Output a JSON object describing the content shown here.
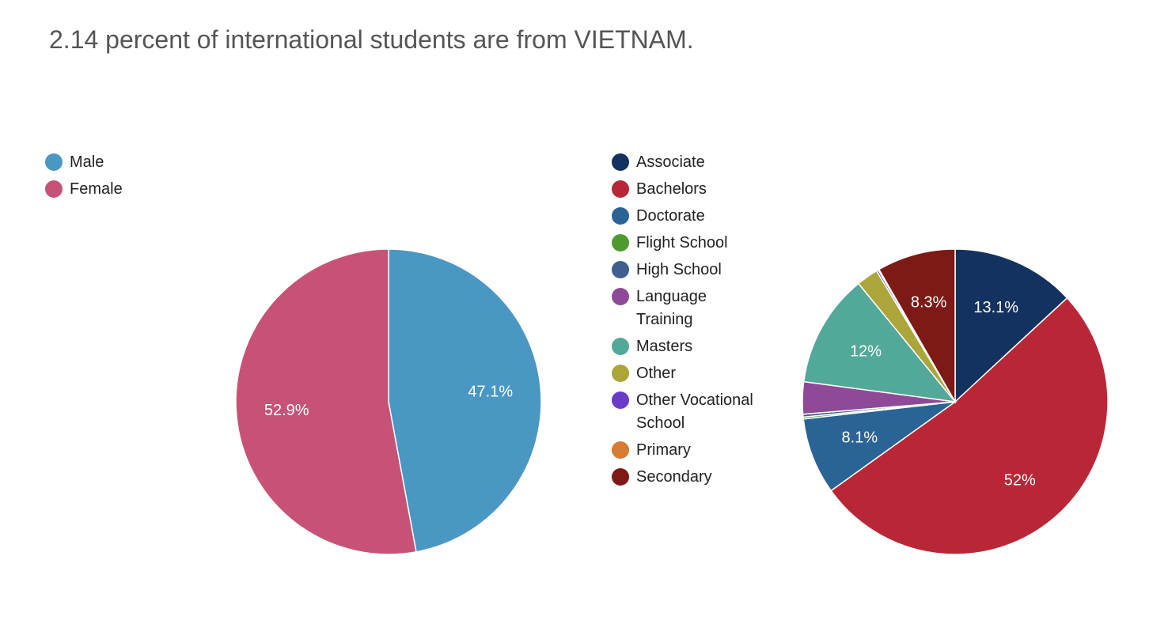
{
  "title": "2.14 percent of international students are from VIETNAM.",
  "chart_data": [
    {
      "type": "pie",
      "categories": [
        "Male",
        "Female"
      ],
      "values": [
        47.1,
        52.9
      ],
      "value_labels": [
        "47.1%",
        "52.9%"
      ],
      "colors": [
        "#4a97c4",
        "#c85276"
      ]
    },
    {
      "type": "pie",
      "categories": [
        "Associate",
        "Bachelors",
        "Doctorate",
        "Flight School",
        "High School",
        "Language Training",
        "Masters",
        "Other",
        "Other Vocational School",
        "Primary",
        "Secondary"
      ],
      "values": [
        13.1,
        52,
        8.1,
        0.2,
        0.3,
        3.4,
        12,
        2.3,
        0.2,
        0.1,
        8.3
      ],
      "value_labels": [
        "13.1%",
        "52%",
        "8.1%",
        null,
        null,
        null,
        "12%",
        null,
        null,
        null,
        "8.3%"
      ],
      "colors": [
        "#14325f",
        "#b92737",
        "#2a6496",
        "#4e9a2e",
        "#3e5f8f",
        "#8e4a96",
        "#53a999",
        "#aba53a",
        "#6a3bc9",
        "#d87b33",
        "#7d1a16"
      ]
    }
  ]
}
